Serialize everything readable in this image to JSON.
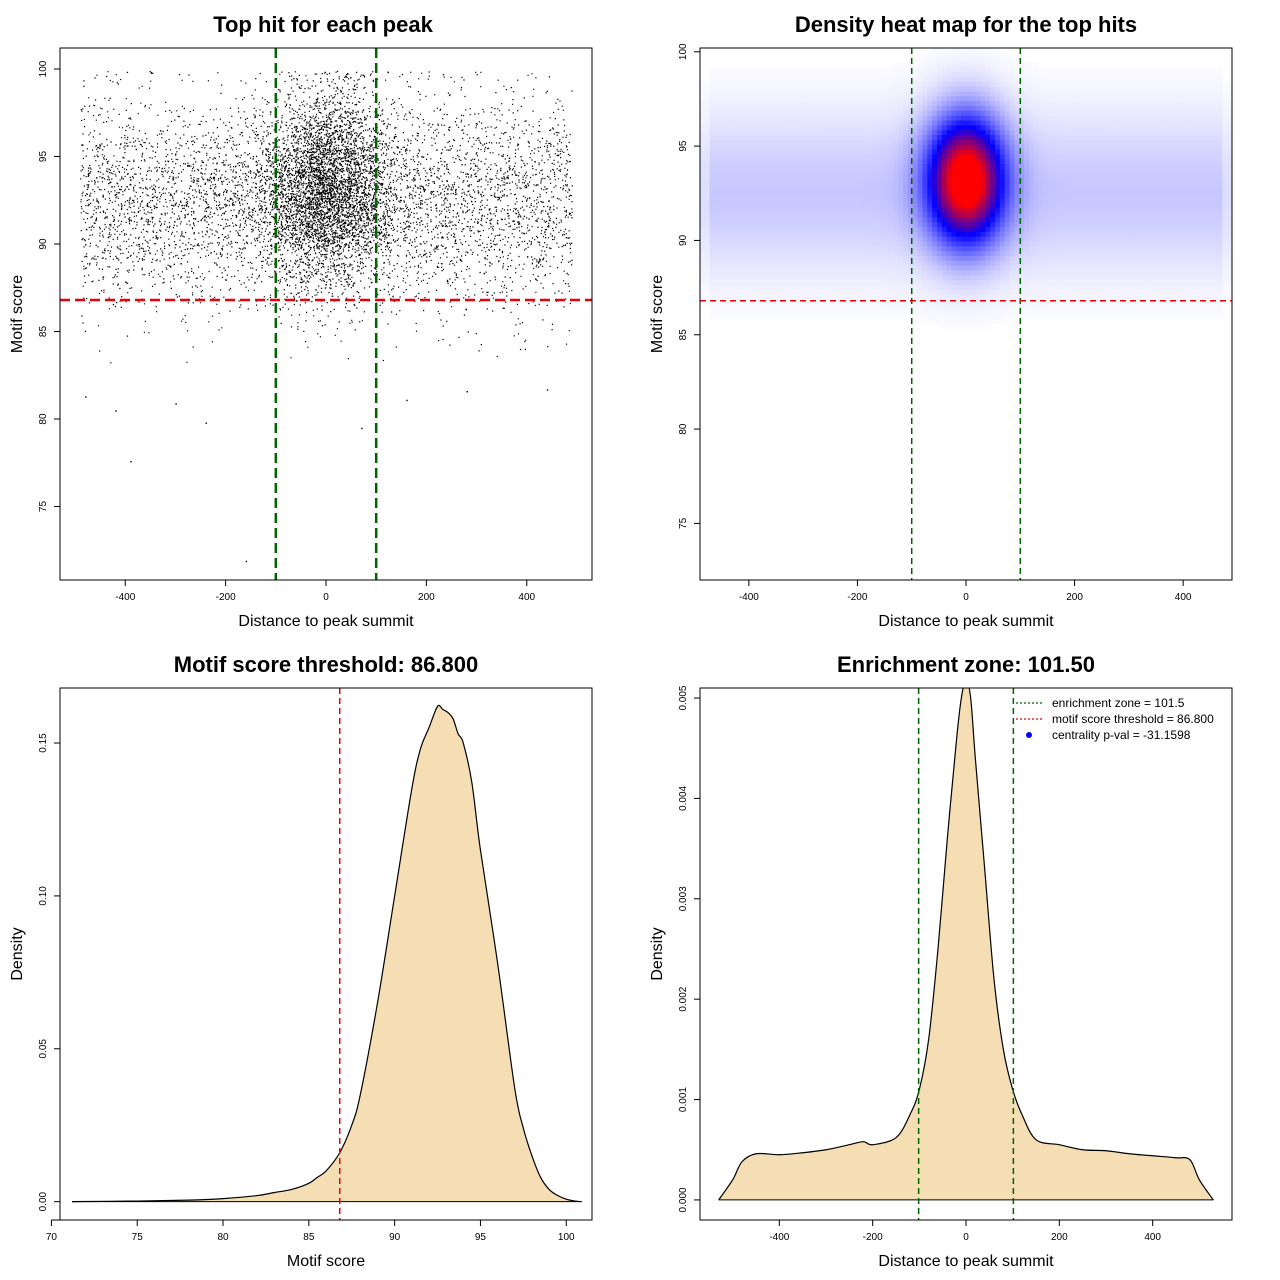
{
  "chart_data": [
    {
      "type": "scatter",
      "title": "Top hit for each peak",
      "xlabel": "Distance to peak summit",
      "ylabel": "Motif score",
      "xlim": [
        -530,
        530
      ],
      "ylim": [
        70.8,
        101.2
      ],
      "xticks": [
        -400,
        -200,
        0,
        200,
        400
      ],
      "yticks": [
        75,
        80,
        85,
        90,
        95,
        100
      ],
      "vlines": [
        -100,
        100
      ],
      "hline": 86.8,
      "line_colors": {
        "vertical": "#006400",
        "horizontal": "#e8000b"
      },
      "point_color": "#000000",
      "point_model": {
        "uniform_fraction": 0.55,
        "central_fraction": 0.45,
        "x_range": [
          -490,
          490
        ],
        "uniform_score_mean": 92.5,
        "uniform_score_sd": 3.0,
        "central_x_sd": 65,
        "central_score_mean": 93.2,
        "central_score_sd": 2.6
      },
      "sample_size": 9000,
      "outliers": [
        [
          -160,
          71.9
        ],
        [
          -390,
          77.6
        ],
        [
          -240,
          79.8
        ],
        [
          -420,
          80.5
        ],
        [
          -300,
          80.9
        ],
        [
          -480,
          81.3
        ],
        [
          160,
          81.1
        ],
        [
          280,
          81.6
        ],
        [
          440,
          81.7
        ],
        [
          70,
          79.5
        ]
      ]
    },
    {
      "type": "heatmap",
      "title": "Density heat map for the top hits",
      "xlabel": "Distance to peak summit",
      "ylabel": "Motif score",
      "xlim": [
        -490,
        490
      ],
      "ylim": [
        72,
        100.2
      ],
      "xticks": [
        -400,
        -200,
        0,
        200,
        400
      ],
      "yticks": [
        75,
        80,
        85,
        90,
        95,
        100
      ],
      "vlines": [
        -100,
        100
      ],
      "hline": 86.8,
      "colormap": [
        "#ffffff",
        "#0000ff",
        "#ff0000"
      ],
      "density_model": {
        "peak_center": [
          0,
          93.2
        ],
        "peak_sd": [
          48,
          2.3
        ],
        "background_band_center": 92.5,
        "background_band_sd": 3.0
      }
    },
    {
      "type": "area",
      "title": "Motif score threshold: 86.800",
      "xlabel": "Motif score",
      "ylabel": "Density",
      "xlim": [
        70.5,
        101.5
      ],
      "ylim": [
        -0.006,
        0.168
      ],
      "xticks": [
        70,
        75,
        80,
        85,
        90,
        95,
        100
      ],
      "yticks": [
        0.0,
        0.05,
        0.1,
        0.15
      ],
      "ytick_labels": [
        "0.00",
        "0.05",
        "0.10",
        "0.15"
      ],
      "vline": 86.8,
      "vline_color": "#e8000b",
      "fill": "#f5deb3",
      "x": [
        71.2,
        75,
        78,
        80,
        82,
        83,
        84,
        85,
        85.5,
        86,
        86.8,
        87.5,
        88,
        89,
        90,
        91,
        91.5,
        92,
        92.5,
        92.8,
        93.1,
        93.4,
        93.7,
        94,
        94.5,
        95,
        96,
        97,
        97.5,
        98,
        98.5,
        99,
        99.5,
        100,
        100.5,
        100.9
      ],
      "y": [
        0.0,
        0.0002,
        0.0005,
        0.001,
        0.002,
        0.003,
        0.004,
        0.006,
        0.008,
        0.01,
        0.016,
        0.025,
        0.035,
        0.065,
        0.1,
        0.135,
        0.148,
        0.155,
        0.162,
        0.161,
        0.16,
        0.158,
        0.153,
        0.15,
        0.137,
        0.115,
        0.078,
        0.037,
        0.024,
        0.015,
        0.008,
        0.004,
        0.002,
        0.0008,
        0.0002,
        0.0
      ]
    },
    {
      "type": "area",
      "title": "Enrichment zone: 101.50",
      "xlabel": "Distance to peak summit",
      "ylabel": "Density",
      "xlim": [
        -570,
        570
      ],
      "ylim": [
        -0.0002,
        0.0051
      ],
      "xticks": [
        -400,
        -200,
        0,
        200,
        400
      ],
      "yticks": [
        0.0,
        0.001,
        0.002,
        0.003,
        0.004,
        0.005
      ],
      "ytick_labels": [
        "0.000",
        "0.001",
        "0.002",
        "0.003",
        "0.004",
        "0.005"
      ],
      "vlines": [
        -101.5,
        101.5
      ],
      "fill": "#f5deb3",
      "x": [
        -530,
        -500,
        -480,
        -450,
        -400,
        -350,
        -300,
        -250,
        -220,
        -200,
        -150,
        -120,
        -100,
        -80,
        -60,
        -40,
        -20,
        -10,
        0,
        10,
        20,
        40,
        60,
        80,
        100,
        120,
        150,
        200,
        250,
        300,
        350,
        400,
        450,
        480,
        500,
        530
      ],
      "y": [
        0.0,
        0.0002,
        0.00038,
        0.00046,
        0.00045,
        0.00047,
        0.0005,
        0.00055,
        0.00058,
        0.00055,
        0.00062,
        0.00085,
        0.0011,
        0.0016,
        0.0025,
        0.0036,
        0.0046,
        0.005,
        0.00518,
        0.005,
        0.0044,
        0.0033,
        0.0022,
        0.0015,
        0.0011,
        0.00085,
        0.0006,
        0.00055,
        0.0005,
        0.00049,
        0.00046,
        0.00044,
        0.00042,
        0.0004,
        0.0002,
        0.0
      ],
      "legend": {
        "position": "top-right",
        "entries": [
          {
            "label": "enrichment zone = 101.5",
            "style": "dotted",
            "color": "#006400"
          },
          {
            "label": "motif score threshold = 86.800",
            "style": "dotted",
            "color": "#e8000b"
          },
          {
            "label": "centrality p-val = -31.1598",
            "style": "point",
            "color": "#0000ff"
          }
        ]
      }
    }
  ]
}
